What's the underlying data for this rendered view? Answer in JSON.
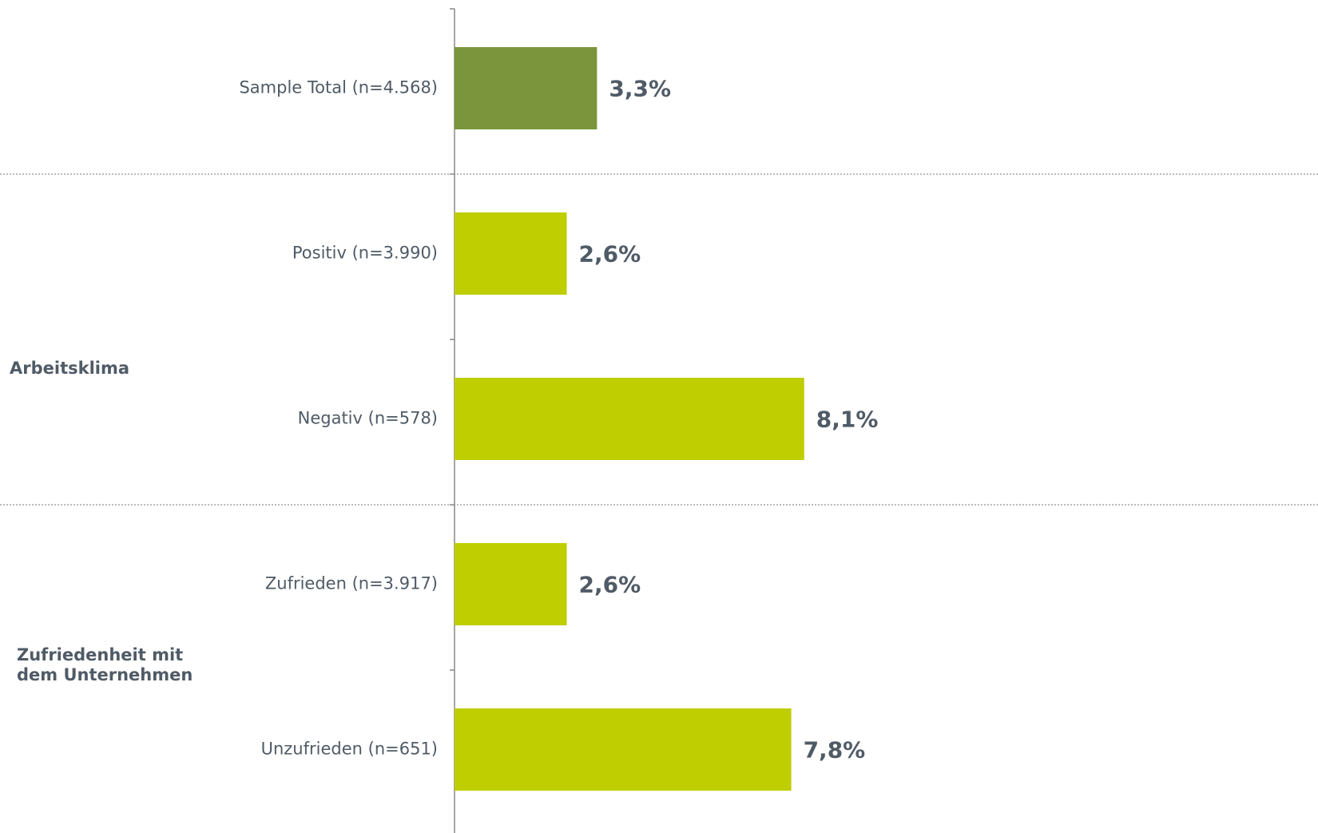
{
  "chart_data": {
    "type": "bar",
    "orientation": "horizontal",
    "categories": [
      "Sample Total (n=4.568)",
      "Positiv (n=3.990)",
      "Negativ (n=578)",
      "Zufrieden (n=3.917)",
      "Unzufrieden (n=651)"
    ],
    "values": [
      3.3,
      2.6,
      8.1,
      2.6,
      7.8
    ],
    "value_labels": [
      "3,3%",
      "2,6%",
      "8,1%",
      "2,6%",
      "7,8%"
    ],
    "colors": [
      "#7a953b",
      "#bfce00",
      "#bfce00",
      "#bfce00",
      "#bfce00"
    ],
    "groups": [
      {
        "lines": [
          "Arbeitsklima"
        ]
      },
      {
        "lines": [
          "Zufriedenheit mit",
          "dem Unternehmen"
        ]
      }
    ],
    "xlim": [
      0,
      20
    ]
  }
}
